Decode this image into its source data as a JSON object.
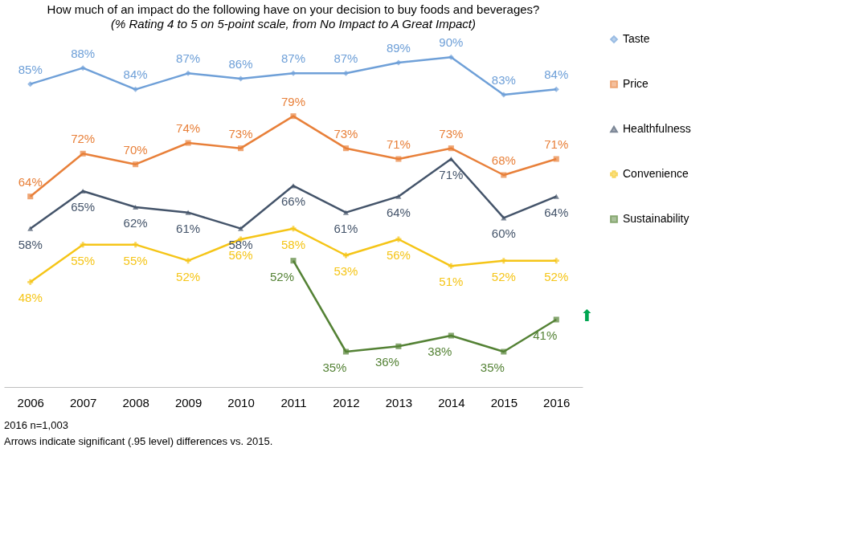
{
  "chart_data": {
    "type": "line",
    "title": "How much of an impact do the following have on your decision to buy foods and beverages?",
    "subtitle": "(% Rating 4 to 5 on 5-point scale, from No Impact  to A Great Impact)",
    "categories": [
      "2006",
      "2007",
      "2008",
      "2009",
      "2010",
      "2011",
      "2012",
      "2013",
      "2014",
      "2015",
      "2016"
    ],
    "legend": "right",
    "grid": false,
    "line_style": "solid",
    "series": [
      {
        "name": "Taste",
        "color": "#6fa0d8",
        "marker": "diamond",
        "values": [
          85,
          88,
          84,
          87,
          86,
          87,
          87,
          89,
          90,
          83,
          84
        ],
        "value_labels": [
          "85%",
          "88%",
          "84%",
          "87%",
          "86%",
          "87%",
          "87%",
          "89%",
          "90%",
          "83%",
          "84%"
        ]
      },
      {
        "name": "Price",
        "color": "#e8803a",
        "marker": "square",
        "values": [
          64,
          72,
          70,
          74,
          73,
          79,
          73,
          71,
          73,
          68,
          71
        ],
        "value_labels": [
          "64%",
          "72%",
          "70%",
          "74%",
          "73%",
          "79%",
          "73%",
          "71%",
          "73%",
          "68%",
          "71%"
        ]
      },
      {
        "name": "Healthfulness",
        "color": "#44546a",
        "marker": "triangle",
        "values": [
          58,
          65,
          62,
          61,
          58,
          66,
          61,
          64,
          71,
          60,
          64
        ],
        "value_labels": [
          "58%",
          "65%",
          "62%",
          "61%",
          "58%",
          "66%",
          "61%",
          "64%",
          "71%",
          "60%",
          "64%"
        ]
      },
      {
        "name": "Convenience",
        "color": "#f5c518",
        "marker": "cross",
        "values": [
          48,
          55,
          55,
          52,
          56,
          58,
          53,
          56,
          51,
          52,
          52
        ],
        "value_labels": [
          "48%",
          "55%",
          "55%",
          "52%",
          "56%",
          "58%",
          "53%",
          "56%",
          "51%",
          "52%",
          "52%"
        ]
      },
      {
        "name": "Sustainability",
        "color": "#548235",
        "marker": "square",
        "values": [
          null,
          null,
          null,
          null,
          null,
          52,
          35,
          36,
          38,
          35,
          41
        ],
        "value_labels": [
          null,
          null,
          null,
          null,
          null,
          "52%",
          "35%",
          "36%",
          "38%",
          "35%",
          "41%"
        ]
      }
    ],
    "annotations": [
      {
        "text": "⬆",
        "x": "2016",
        "y": 41
      },
      "2016 n=1,003",
      "Arrows indicate significant (.95 level) differences vs. 2015."
    ]
  }
}
